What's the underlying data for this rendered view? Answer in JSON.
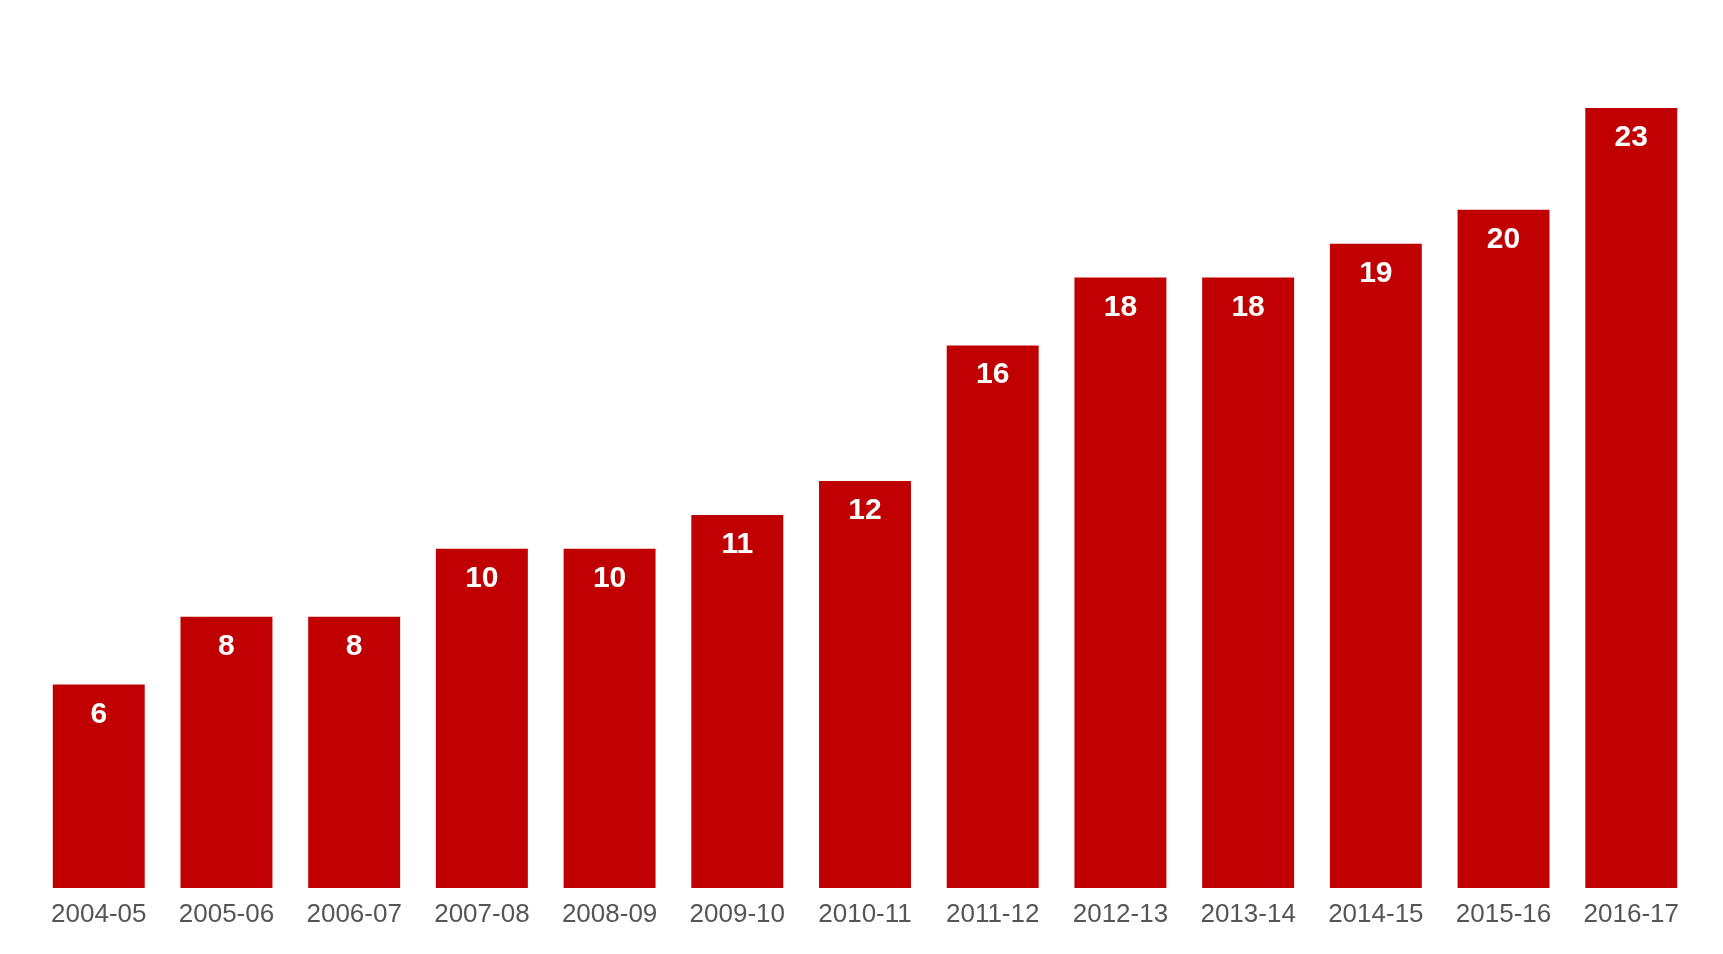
{
  "chart_data": {
    "type": "bar",
    "categories": [
      "2004-05",
      "2005-06",
      "2006-07",
      "2007-08",
      "2008-09",
      "2009-10",
      "2010-11",
      "2011-12",
      "2012-13",
      "2013-14",
      "2014-15",
      "2015-16",
      "2016-17"
    ],
    "values": [
      6,
      8,
      8,
      10,
      10,
      11,
      12,
      16,
      18,
      18,
      19,
      20,
      23
    ],
    "color": "#c00000",
    "data_labels": true
  }
}
